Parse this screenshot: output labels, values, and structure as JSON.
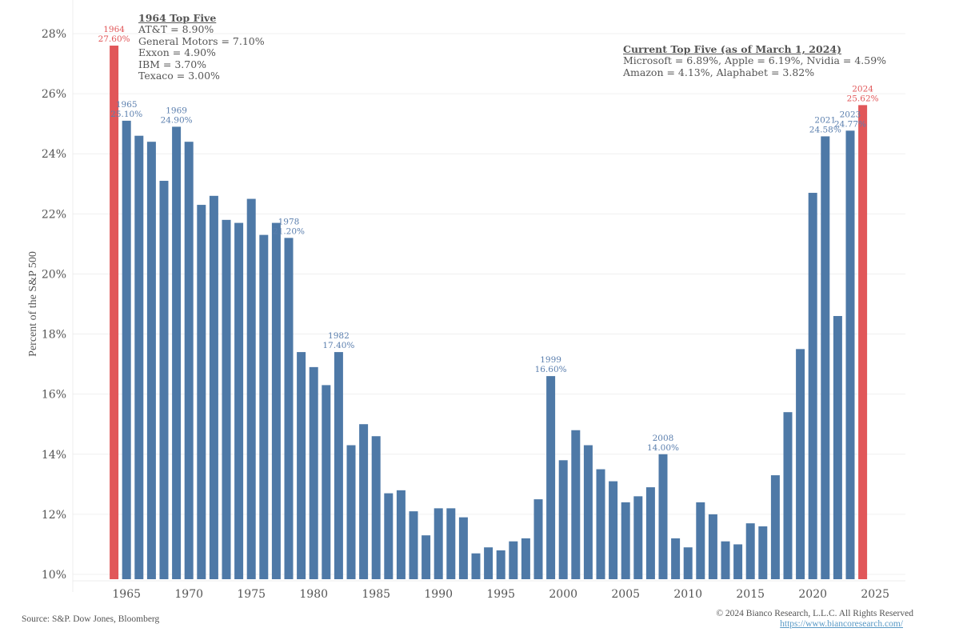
{
  "chart_data": {
    "type": "bar",
    "title": "",
    "xlabel": "",
    "ylabel": "Percent of the S&P 500",
    "ylim": [
      10,
      28
    ],
    "yticks": [
      "10%",
      "12%",
      "14%",
      "16%",
      "18%",
      "20%",
      "22%",
      "24%",
      "26%",
      "28%"
    ],
    "ytick_values": [
      10,
      12,
      14,
      16,
      18,
      20,
      22,
      24,
      26,
      28
    ],
    "xticks": [
      "1965",
      "1970",
      "1975",
      "1980",
      "1985",
      "1990",
      "1995",
      "2000",
      "2005",
      "2010",
      "2015",
      "2020",
      "2025"
    ],
    "xtick_values": [
      1965,
      1970,
      1975,
      1980,
      1985,
      1990,
      1995,
      2000,
      2005,
      2010,
      2015,
      2020,
      2025
    ],
    "grid": true,
    "colors": {
      "default": "#4e79a7",
      "highlight": "#e15759",
      "label_default": "#5b7fae"
    },
    "highlight_years": [
      1964,
      2024
    ],
    "categories": [
      1964,
      1965,
      1966,
      1967,
      1968,
      1969,
      1970,
      1971,
      1972,
      1973,
      1974,
      1975,
      1976,
      1977,
      1978,
      1979,
      1980,
      1981,
      1982,
      1983,
      1984,
      1985,
      1986,
      1987,
      1988,
      1989,
      1990,
      1991,
      1992,
      1993,
      1994,
      1995,
      1996,
      1997,
      1998,
      1999,
      2000,
      2001,
      2002,
      2003,
      2004,
      2005,
      2006,
      2007,
      2008,
      2009,
      2010,
      2011,
      2012,
      2013,
      2014,
      2015,
      2016,
      2017,
      2018,
      2019,
      2020,
      2021,
      2022,
      2023,
      2024
    ],
    "values": [
      27.6,
      25.1,
      24.6,
      24.4,
      23.1,
      24.9,
      24.4,
      22.3,
      22.6,
      21.8,
      21.7,
      22.5,
      21.3,
      21.7,
      21.2,
      17.4,
      16.9,
      16.3,
      17.4,
      14.3,
      15.0,
      14.6,
      12.7,
      12.8,
      12.1,
      11.3,
      12.2,
      12.2,
      11.9,
      10.7,
      10.9,
      10.8,
      11.1,
      11.2,
      12.5,
      16.6,
      13.8,
      14.8,
      14.3,
      13.5,
      13.1,
      12.4,
      12.6,
      12.9,
      14.0,
      11.2,
      10.9,
      12.4,
      12.0,
      11.1,
      11.0,
      11.7,
      11.6,
      13.3,
      15.4,
      17.5,
      22.7,
      24.58,
      18.6,
      24.77,
      25.62
    ],
    "annotations": [
      {
        "year": 1964,
        "line1": "1964",
        "line2": "27.60%"
      },
      {
        "year": 1965,
        "line1": "1965",
        "line2": "25.10%"
      },
      {
        "year": 1969,
        "line1": "1969",
        "line2": "24.90%"
      },
      {
        "year": 1978,
        "line1": "1978",
        "line2": "21.20%"
      },
      {
        "year": 1982,
        "line1": "1982",
        "line2": "17.40%"
      },
      {
        "year": 1999,
        "line1": "1999",
        "line2": "16.60%"
      },
      {
        "year": 2008,
        "line1": "2008",
        "line2": "14.00%"
      },
      {
        "year": 2021,
        "line1": "2021",
        "line2": "24.58%"
      },
      {
        "year": 2023,
        "line1": "2023",
        "line2": "24.77%"
      },
      {
        "year": 2024,
        "line1": "2024",
        "line2": "25.62%"
      }
    ]
  },
  "notes": {
    "top_1964": {
      "title": "1964 Top Five",
      "lines": [
        "AT&T = 8.90%",
        "General Motors = 7.10%",
        "Exxon = 4.90%",
        "IBM = 3.70%",
        "Texaco = 3.00%"
      ]
    },
    "current": {
      "title": "Current Top Five (as of March 1, 2024)",
      "lines": [
        "Microsoft = 6.89%, Apple = 6.19%, Nvidia = 4.59%",
        "Amazon = 4.13%, Alaphabet = 3.82%"
      ]
    }
  },
  "footer": {
    "source": "Source: S&P. Dow Jones, Bloomberg",
    "copyright": "© 2024 Bianco Research, L.L.C. All Rights Reserved",
    "url": "https://www.biancoresearch.com/"
  }
}
